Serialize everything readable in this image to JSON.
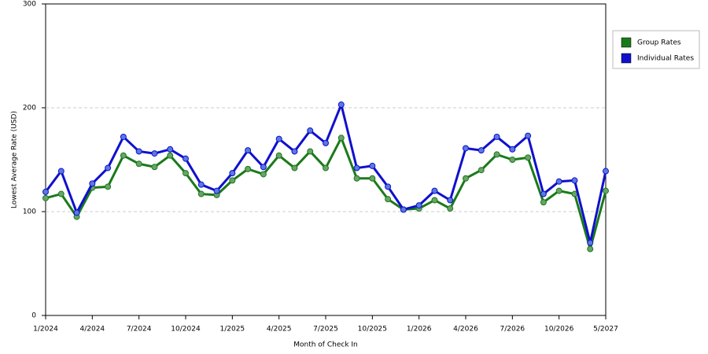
{
  "chart_data": {
    "type": "line",
    "xlabel": "Month of Check In",
    "ylabel": "Lowest Average Rate (USD)",
    "categories": [
      "1/2024",
      null,
      null,
      "4/2024",
      null,
      null,
      "7/2024",
      null,
      null,
      "10/2024",
      null,
      null,
      "1/2025",
      null,
      null,
      "4/2025",
      null,
      null,
      "7/2025",
      null,
      null,
      "10/2025",
      null,
      null,
      "1/2026",
      null,
      null,
      "4/2026",
      null,
      null,
      "7/2026",
      null,
      null,
      "10/2026",
      null,
      null,
      "5/2027"
    ],
    "series": [
      {
        "name": "Group Rates",
        "color": "#1a7a1a",
        "values": [
          113,
          117,
          95,
          123,
          124,
          154,
          146,
          143,
          154,
          137,
          117,
          116,
          130,
          141,
          136,
          154,
          142,
          158,
          142,
          171,
          132,
          132,
          112,
          102,
          103,
          111,
          103,
          132,
          140,
          155,
          150,
          152,
          109,
          120,
          117,
          64,
          120
        ]
      },
      {
        "name": "Individual Rates",
        "color": "#1010cc",
        "values": [
          119,
          139,
          99,
          127,
          142,
          172,
          158,
          156,
          160,
          151,
          126,
          120,
          137,
          159,
          143,
          170,
          158,
          178,
          166,
          203,
          142,
          144,
          124,
          102,
          106,
          120,
          111,
          161,
          159,
          172,
          160,
          173,
          117,
          129,
          130,
          70,
          139
        ]
      }
    ],
    "ylim": [
      0,
      300
    ],
    "yticks": [
      0,
      100,
      200,
      300
    ],
    "grid": true,
    "legend": "top-right"
  }
}
